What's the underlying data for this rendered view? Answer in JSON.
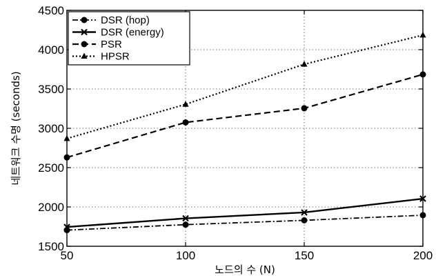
{
  "chart_data": {
    "type": "line",
    "title": "",
    "xlabel": "노드의 수 (N)",
    "ylabel": "네트워크 수명 (seconds)",
    "x": [
      50,
      100,
      150,
      200
    ],
    "xlim": [
      50,
      200
    ],
    "ylim": [
      1500,
      4500
    ],
    "xticks": [
      "50",
      "100",
      "150",
      "200"
    ],
    "yticks": [
      "1500",
      "2000",
      "2500",
      "3000",
      "3500",
      "4000",
      "4500"
    ],
    "grid": "dotted",
    "legend_position": "top-left",
    "series": [
      {
        "name": "DSR (hop)",
        "values": [
          1705,
          1775,
          1830,
          1895
        ],
        "style": "dash-dot",
        "marker": "circle",
        "color": "#000000"
      },
      {
        "name": "DSR (energy)",
        "values": [
          1745,
          1855,
          1930,
          2105
        ],
        "style": "solid",
        "marker": "x",
        "color": "#000000"
      },
      {
        "name": "PSR",
        "values": [
          2630,
          3075,
          3255,
          3685
        ],
        "style": "dashed",
        "marker": "circle-filled",
        "color": "#000000"
      },
      {
        "name": "HPSR",
        "values": [
          2870,
          3305,
          3815,
          4185
        ],
        "style": "dotted",
        "marker": "triangle",
        "color": "#000000"
      }
    ]
  }
}
